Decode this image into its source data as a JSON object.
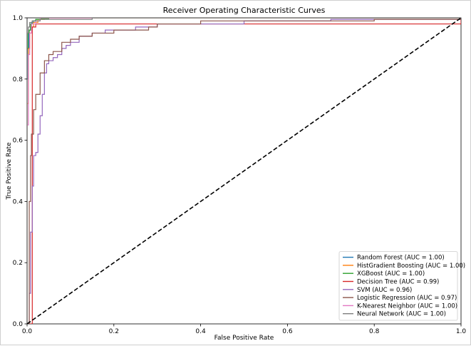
{
  "chart_data": {
    "type": "line",
    "title": "Receiver Operating Characteristic Curves",
    "xlabel": "False Positive Rate",
    "ylabel": "True Positive Rate",
    "xlim": [
      0,
      1
    ],
    "ylim": [
      0,
      1
    ],
    "xticks": [
      "0.0",
      "0.2",
      "0.4",
      "0.6",
      "0.8",
      "1.0"
    ],
    "yticks": [
      "0.0",
      "0.2",
      "0.4",
      "0.6",
      "0.8",
      "1.0"
    ],
    "grid": false,
    "legend_position": "lower-right",
    "series": [
      {
        "name": "Random Forest (AUC = 1.00)",
        "color": "#1f77b4",
        "x": [
          0,
          0,
          0.002,
          0.002,
          0.004,
          0.004,
          0.008,
          0.01,
          0.015,
          0.02,
          0.03,
          1
        ],
        "y": [
          0,
          0.8,
          0.8,
          0.9,
          0.9,
          0.96,
          0.97,
          0.985,
          0.99,
          0.995,
          1.0,
          1.0
        ]
      },
      {
        "name": "HistGradient Boosting (AUC = 1.00)",
        "color": "#ff7f0e",
        "x": [
          0,
          0,
          0.003,
          0.003,
          0.006,
          0.01,
          0.015,
          0.025,
          0.04,
          1
        ],
        "y": [
          0,
          0.72,
          0.72,
          0.9,
          0.95,
          0.97,
          0.985,
          0.995,
          1.0,
          1.0
        ]
      },
      {
        "name": "XGBoost (AUC = 1.00)",
        "color": "#2ca02c",
        "x": [
          0,
          0,
          0.002,
          0.005,
          0.008,
          0.012,
          0.02,
          0.03,
          0.05,
          1
        ],
        "y": [
          0,
          0.9,
          0.95,
          0.96,
          0.98,
          0.99,
          0.995,
          0.998,
          1.0,
          1.0
        ]
      },
      {
        "name": "Decision Tree (AUC = 0.99)",
        "color": "#d62728",
        "x": [
          0,
          0.012,
          0.02,
          1
        ],
        "y": [
          0,
          0.97,
          0.98,
          1.0
        ]
      },
      {
        "name": "SVM (AUC = 0.96)",
        "color": "#9467bd",
        "x": [
          0,
          0.005,
          0.008,
          0.012,
          0.015,
          0.02,
          0.025,
          0.03,
          0.035,
          0.04,
          0.045,
          0.05,
          0.06,
          0.07,
          0.08,
          0.09,
          0.1,
          0.12,
          0.15,
          0.18,
          0.22,
          0.25,
          0.28,
          0.3,
          0.5,
          0.7,
          1.0
        ],
        "y": [
          0,
          0.1,
          0.3,
          0.45,
          0.55,
          0.56,
          0.62,
          0.68,
          0.75,
          0.82,
          0.85,
          0.86,
          0.87,
          0.88,
          0.9,
          0.91,
          0.92,
          0.94,
          0.95,
          0.96,
          0.96,
          0.97,
          0.97,
          0.98,
          0.99,
          0.995,
          1.0
        ]
      },
      {
        "name": "Logistic Regression (AUC = 0.97)",
        "color": "#8c564b",
        "x": [
          0,
          0.005,
          0.008,
          0.01,
          0.015,
          0.02,
          0.03,
          0.04,
          0.05,
          0.06,
          0.08,
          0.1,
          0.12,
          0.15,
          0.18,
          0.2,
          0.25,
          0.28,
          0.3,
          0.4,
          0.6,
          0.8,
          1.0
        ],
        "y": [
          0,
          0.4,
          0.55,
          0.62,
          0.7,
          0.75,
          0.82,
          0.86,
          0.88,
          0.89,
          0.92,
          0.93,
          0.94,
          0.95,
          0.95,
          0.96,
          0.96,
          0.97,
          0.98,
          0.99,
          0.99,
          0.995,
          1.0
        ]
      },
      {
        "name": "K-Nearest Neighbor (AUC = 1.00)",
        "color": "#e377c2",
        "x": [
          0,
          0,
          0.003,
          0.006,
          0.01,
          0.02,
          0.03,
          1
        ],
        "y": [
          0,
          0.65,
          0.88,
          0.95,
          0.98,
          0.99,
          1.0,
          1.0
        ]
      },
      {
        "name": "Neural Network (AUC = 1.00)",
        "color": "#7f7f7f",
        "x": [
          0,
          0,
          0.003,
          0.006,
          0.012,
          0.03,
          0.1,
          0.15,
          1
        ],
        "y": [
          0,
          0.95,
          0.97,
          0.985,
          0.99,
          0.995,
          0.995,
          1.0,
          1.0
        ]
      }
    ],
    "reference_line": {
      "x": [
        0,
        1
      ],
      "y": [
        0,
        1
      ],
      "style": "dashed",
      "color": "#000000"
    }
  }
}
